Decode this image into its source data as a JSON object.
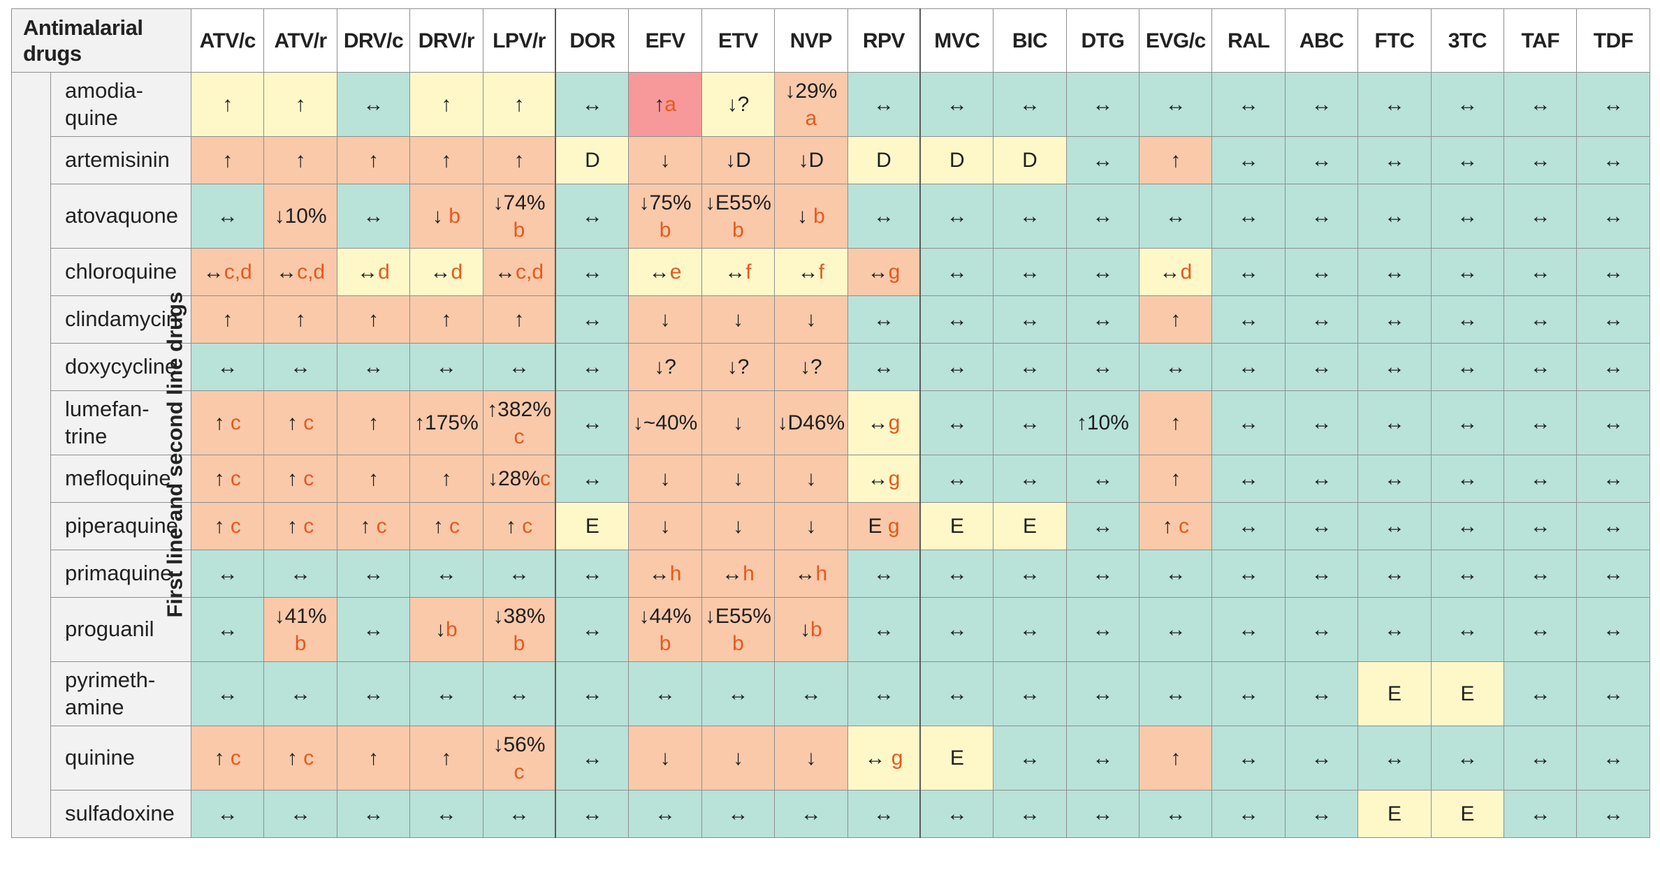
{
  "header": {
    "corner": "Antimalarial drugs",
    "row_group_label": "First line and second line drugs",
    "columns": [
      "ATV/c",
      "ATV/r",
      "DRV/c",
      "DRV/r",
      "LPV/r",
      "DOR",
      "EFV",
      "ETV",
      "NVP",
      "RPV",
      "MVC",
      "BIC",
      "DTG",
      "EVG/c",
      "RAL",
      "ABC",
      "FTC",
      "3TC",
      "TAF",
      "TDF"
    ]
  },
  "colors": {
    "no_interaction": "#b9e2d9",
    "minor": "#fef8c9",
    "potential": "#f9c9aa",
    "do_not_coadminister": "#f7999a",
    "note_text": "#e6591c"
  },
  "rows": [
    {
      "drug": "amodia-quine",
      "cells": [
        [
          "↑",
          "",
          "y"
        ],
        [
          "↑",
          "",
          "y"
        ],
        [
          "↔",
          "",
          "g"
        ],
        [
          "↑",
          "",
          "y"
        ],
        [
          "↑",
          "",
          "y"
        ],
        [
          "↔",
          "",
          "g"
        ],
        [
          "↑",
          "a",
          "r"
        ],
        [
          "↓?",
          "",
          "y"
        ],
        [
          "↓29%",
          "a",
          "o"
        ],
        [
          "↔",
          "",
          "g"
        ],
        [
          "↔",
          "",
          "g"
        ],
        [
          "↔",
          "",
          "g"
        ],
        [
          "↔",
          "",
          "g"
        ],
        [
          "↔",
          "",
          "g"
        ],
        [
          "↔",
          "",
          "g"
        ],
        [
          "↔",
          "",
          "g"
        ],
        [
          "↔",
          "",
          "g"
        ],
        [
          "↔",
          "",
          "g"
        ],
        [
          "↔",
          "",
          "g"
        ],
        [
          "↔",
          "",
          "g"
        ]
      ]
    },
    {
      "drug": "artemisinin",
      "cells": [
        [
          "↑",
          "",
          "o"
        ],
        [
          "↑",
          "",
          "o"
        ],
        [
          "↑",
          "",
          "o"
        ],
        [
          "↑",
          "",
          "o"
        ],
        [
          "↑",
          "",
          "o"
        ],
        [
          "D",
          "",
          "y"
        ],
        [
          "↓",
          "",
          "o"
        ],
        [
          "↓D",
          "",
          "o"
        ],
        [
          "↓D",
          "",
          "o"
        ],
        [
          "D",
          "",
          "y"
        ],
        [
          "D",
          "",
          "y"
        ],
        [
          "D",
          "",
          "y"
        ],
        [
          "↔",
          "",
          "g"
        ],
        [
          "↑",
          "",
          "o"
        ],
        [
          "↔",
          "",
          "g"
        ],
        [
          "↔",
          "",
          "g"
        ],
        [
          "↔",
          "",
          "g"
        ],
        [
          "↔",
          "",
          "g"
        ],
        [
          "↔",
          "",
          "g"
        ],
        [
          "↔",
          "",
          "g"
        ]
      ]
    },
    {
      "drug": "atovaquone",
      "cells": [
        [
          "↔",
          "",
          "g"
        ],
        [
          "↓10%",
          "",
          "o"
        ],
        [
          "↔",
          "",
          "g"
        ],
        [
          "↓ ",
          "b",
          "o"
        ],
        [
          "↓74%",
          "b",
          "o"
        ],
        [
          "↔",
          "",
          "g"
        ],
        [
          "↓75%",
          "b",
          "o"
        ],
        [
          "↓E55%",
          "b",
          "o"
        ],
        [
          "↓ ",
          "b",
          "o"
        ],
        [
          "↔",
          "",
          "g"
        ],
        [
          "↔",
          "",
          "g"
        ],
        [
          "↔",
          "",
          "g"
        ],
        [
          "↔",
          "",
          "g"
        ],
        [
          "↔",
          "",
          "g"
        ],
        [
          "↔",
          "",
          "g"
        ],
        [
          "↔",
          "",
          "g"
        ],
        [
          "↔",
          "",
          "g"
        ],
        [
          "↔",
          "",
          "g"
        ],
        [
          "↔",
          "",
          "g"
        ],
        [
          "↔",
          "",
          "g"
        ]
      ]
    },
    {
      "drug": "chloroquine",
      "cells": [
        [
          "↔",
          "c,d",
          "o"
        ],
        [
          "↔",
          "c,d",
          "o"
        ],
        [
          "↔",
          "d",
          "y"
        ],
        [
          "↔",
          "d",
          "y"
        ],
        [
          "↔",
          "c,d",
          "o"
        ],
        [
          "↔",
          "",
          "g"
        ],
        [
          "↔",
          "e",
          "y"
        ],
        [
          "↔",
          "f",
          "y"
        ],
        [
          "↔",
          "f",
          "y"
        ],
        [
          "↔",
          "g",
          "o"
        ],
        [
          "↔",
          "",
          "g"
        ],
        [
          "↔",
          "",
          "g"
        ],
        [
          "↔",
          "",
          "g"
        ],
        [
          "↔",
          "d",
          "y"
        ],
        [
          "↔",
          "",
          "g"
        ],
        [
          "↔",
          "",
          "g"
        ],
        [
          "↔",
          "",
          "g"
        ],
        [
          "↔",
          "",
          "g"
        ],
        [
          "↔",
          "",
          "g"
        ],
        [
          "↔",
          "",
          "g"
        ]
      ]
    },
    {
      "drug": "clindamycin",
      "cells": [
        [
          "↑",
          "",
          "o"
        ],
        [
          "↑",
          "",
          "o"
        ],
        [
          "↑",
          "",
          "o"
        ],
        [
          "↑",
          "",
          "o"
        ],
        [
          "↑",
          "",
          "o"
        ],
        [
          "↔",
          "",
          "g"
        ],
        [
          "↓",
          "",
          "o"
        ],
        [
          "↓",
          "",
          "o"
        ],
        [
          "↓",
          "",
          "o"
        ],
        [
          "↔",
          "",
          "g"
        ],
        [
          "↔",
          "",
          "g"
        ],
        [
          "↔",
          "",
          "g"
        ],
        [
          "↔",
          "",
          "g"
        ],
        [
          "↑",
          "",
          "o"
        ],
        [
          "↔",
          "",
          "g"
        ],
        [
          "↔",
          "",
          "g"
        ],
        [
          "↔",
          "",
          "g"
        ],
        [
          "↔",
          "",
          "g"
        ],
        [
          "↔",
          "",
          "g"
        ],
        [
          "↔",
          "",
          "g"
        ]
      ]
    },
    {
      "drug": "doxycycline",
      "cells": [
        [
          "↔",
          "",
          "g"
        ],
        [
          "↔",
          "",
          "g"
        ],
        [
          "↔",
          "",
          "g"
        ],
        [
          "↔",
          "",
          "g"
        ],
        [
          "↔",
          "",
          "g"
        ],
        [
          "↔",
          "",
          "g"
        ],
        [
          "↓?",
          "",
          "o"
        ],
        [
          "↓?",
          "",
          "o"
        ],
        [
          "↓?",
          "",
          "o"
        ],
        [
          "↔",
          "",
          "g"
        ],
        [
          "↔",
          "",
          "g"
        ],
        [
          "↔",
          "",
          "g"
        ],
        [
          "↔",
          "",
          "g"
        ],
        [
          "↔",
          "",
          "g"
        ],
        [
          "↔",
          "",
          "g"
        ],
        [
          "↔",
          "",
          "g"
        ],
        [
          "↔",
          "",
          "g"
        ],
        [
          "↔",
          "",
          "g"
        ],
        [
          "↔",
          "",
          "g"
        ],
        [
          "↔",
          "",
          "g"
        ]
      ]
    },
    {
      "drug": "lumefan-trine",
      "cells": [
        [
          "↑ ",
          "c",
          "o"
        ],
        [
          "↑ ",
          "c",
          "o"
        ],
        [
          "↑",
          "",
          "o"
        ],
        [
          "↑175%",
          "",
          "o"
        ],
        [
          "↑382%",
          "c",
          "o"
        ],
        [
          "↔",
          "",
          "g"
        ],
        [
          "↓~40%",
          "",
          "o"
        ],
        [
          "↓",
          "",
          "o"
        ],
        [
          "↓D46%",
          "",
          "o"
        ],
        [
          "↔",
          "g",
          "y"
        ],
        [
          "↔",
          "",
          "g"
        ],
        [
          "↔",
          "",
          "g"
        ],
        [
          "↑10%",
          "",
          "g"
        ],
        [
          "↑",
          "",
          "o"
        ],
        [
          "↔",
          "",
          "g"
        ],
        [
          "↔",
          "",
          "g"
        ],
        [
          "↔",
          "",
          "g"
        ],
        [
          "↔",
          "",
          "g"
        ],
        [
          "↔",
          "",
          "g"
        ],
        [
          "↔",
          "",
          "g"
        ]
      ]
    },
    {
      "drug": "mefloquine",
      "cells": [
        [
          "↑ ",
          "c",
          "o"
        ],
        [
          "↑ ",
          "c",
          "o"
        ],
        [
          "↑",
          "",
          "o"
        ],
        [
          "↑",
          "",
          "o"
        ],
        [
          "↓28%",
          "c",
          "o"
        ],
        [
          "↔",
          "",
          "g"
        ],
        [
          "↓",
          "",
          "o"
        ],
        [
          "↓",
          "",
          "o"
        ],
        [
          "↓",
          "",
          "o"
        ],
        [
          "↔",
          "g",
          "y"
        ],
        [
          "↔",
          "",
          "g"
        ],
        [
          "↔",
          "",
          "g"
        ],
        [
          "↔",
          "",
          "g"
        ],
        [
          "↑",
          "",
          "o"
        ],
        [
          "↔",
          "",
          "g"
        ],
        [
          "↔",
          "",
          "g"
        ],
        [
          "↔",
          "",
          "g"
        ],
        [
          "↔",
          "",
          "g"
        ],
        [
          "↔",
          "",
          "g"
        ],
        [
          "↔",
          "",
          "g"
        ]
      ]
    },
    {
      "drug": "piperaquine",
      "cells": [
        [
          "↑ ",
          "c",
          "o"
        ],
        [
          "↑ ",
          "c",
          "o"
        ],
        [
          "↑ ",
          "c",
          "o"
        ],
        [
          "↑ ",
          "c",
          "o"
        ],
        [
          "↑ ",
          "c",
          "o"
        ],
        [
          "E",
          "",
          "y"
        ],
        [
          "↓",
          "",
          "o"
        ],
        [
          "↓",
          "",
          "o"
        ],
        [
          "↓",
          "",
          "o"
        ],
        [
          "E ",
          "g",
          "o"
        ],
        [
          "E",
          "",
          "y"
        ],
        [
          "E",
          "",
          "y"
        ],
        [
          "↔",
          "",
          "g"
        ],
        [
          "↑ ",
          "c",
          "o"
        ],
        [
          "↔",
          "",
          "g"
        ],
        [
          "↔",
          "",
          "g"
        ],
        [
          "↔",
          "",
          "g"
        ],
        [
          "↔",
          "",
          "g"
        ],
        [
          "↔",
          "",
          "g"
        ],
        [
          "↔",
          "",
          "g"
        ]
      ]
    },
    {
      "drug": "primaquine",
      "cells": [
        [
          "↔",
          "",
          "g"
        ],
        [
          "↔",
          "",
          "g"
        ],
        [
          "↔",
          "",
          "g"
        ],
        [
          "↔",
          "",
          "g"
        ],
        [
          "↔",
          "",
          "g"
        ],
        [
          "↔",
          "",
          "g"
        ],
        [
          "↔",
          "h",
          "o"
        ],
        [
          "↔",
          "h",
          "o"
        ],
        [
          "↔",
          "h",
          "o"
        ],
        [
          "↔",
          "",
          "g"
        ],
        [
          "↔",
          "",
          "g"
        ],
        [
          "↔",
          "",
          "g"
        ],
        [
          "↔",
          "",
          "g"
        ],
        [
          "↔",
          "",
          "g"
        ],
        [
          "↔",
          "",
          "g"
        ],
        [
          "↔",
          "",
          "g"
        ],
        [
          "↔",
          "",
          "g"
        ],
        [
          "↔",
          "",
          "g"
        ],
        [
          "↔",
          "",
          "g"
        ],
        [
          "↔",
          "",
          "g"
        ]
      ]
    },
    {
      "drug": "proguanil",
      "cells": [
        [
          "↔",
          "",
          "g"
        ],
        [
          "↓41%",
          "b",
          "o"
        ],
        [
          "↔",
          "",
          "g"
        ],
        [
          "↓",
          "b",
          "o"
        ],
        [
          "↓38%",
          "b",
          "o"
        ],
        [
          "↔",
          "",
          "g"
        ],
        [
          "↓44%",
          "b",
          "o"
        ],
        [
          "↓E55%",
          "b",
          "o"
        ],
        [
          "↓",
          "b",
          "o"
        ],
        [
          "↔",
          "",
          "g"
        ],
        [
          "↔",
          "",
          "g"
        ],
        [
          "↔",
          "",
          "g"
        ],
        [
          "↔",
          "",
          "g"
        ],
        [
          "↔",
          "",
          "g"
        ],
        [
          "↔",
          "",
          "g"
        ],
        [
          "↔",
          "",
          "g"
        ],
        [
          "↔",
          "",
          "g"
        ],
        [
          "↔",
          "",
          "g"
        ],
        [
          "↔",
          "",
          "g"
        ],
        [
          "↔",
          "",
          "g"
        ]
      ]
    },
    {
      "drug": "pyrimeth-amine",
      "cells": [
        [
          "↔",
          "",
          "g"
        ],
        [
          "↔",
          "",
          "g"
        ],
        [
          "↔",
          "",
          "g"
        ],
        [
          "↔",
          "",
          "g"
        ],
        [
          "↔",
          "",
          "g"
        ],
        [
          "↔",
          "",
          "g"
        ],
        [
          "↔",
          "",
          "g"
        ],
        [
          "↔",
          "",
          "g"
        ],
        [
          "↔",
          "",
          "g"
        ],
        [
          "↔",
          "",
          "g"
        ],
        [
          "↔",
          "",
          "g"
        ],
        [
          "↔",
          "",
          "g"
        ],
        [
          "↔",
          "",
          "g"
        ],
        [
          "↔",
          "",
          "g"
        ],
        [
          "↔",
          "",
          "g"
        ],
        [
          "↔",
          "",
          "g"
        ],
        [
          "E",
          "",
          "y"
        ],
        [
          "E",
          "",
          "y"
        ],
        [
          "↔",
          "",
          "g"
        ],
        [
          "↔",
          "",
          "g"
        ]
      ]
    },
    {
      "drug": "quinine",
      "cells": [
        [
          "↑ ",
          "c",
          "o"
        ],
        [
          "↑ ",
          "c",
          "o"
        ],
        [
          "↑",
          "",
          "o"
        ],
        [
          "↑",
          "",
          "o"
        ],
        [
          "↓56%",
          "c",
          "o"
        ],
        [
          "↔",
          "",
          "g"
        ],
        [
          "↓",
          "",
          "o"
        ],
        [
          "↓",
          "",
          "o"
        ],
        [
          "↓",
          "",
          "o"
        ],
        [
          "↔ ",
          "g",
          "y"
        ],
        [
          "E",
          "",
          "y"
        ],
        [
          "↔",
          "",
          "g"
        ],
        [
          "↔",
          "",
          "g"
        ],
        [
          "↑",
          "",
          "o"
        ],
        [
          "↔",
          "",
          "g"
        ],
        [
          "↔",
          "",
          "g"
        ],
        [
          "↔",
          "",
          "g"
        ],
        [
          "↔",
          "",
          "g"
        ],
        [
          "↔",
          "",
          "g"
        ],
        [
          "↔",
          "",
          "g"
        ]
      ]
    },
    {
      "drug": "sulfadoxine",
      "cells": [
        [
          "↔",
          "",
          "g"
        ],
        [
          "↔",
          "",
          "g"
        ],
        [
          "↔",
          "",
          "g"
        ],
        [
          "↔",
          "",
          "g"
        ],
        [
          "↔",
          "",
          "g"
        ],
        [
          "↔",
          "",
          "g"
        ],
        [
          "↔",
          "",
          "g"
        ],
        [
          "↔",
          "",
          "g"
        ],
        [
          "↔",
          "",
          "g"
        ],
        [
          "↔",
          "",
          "g"
        ],
        [
          "↔",
          "",
          "g"
        ],
        [
          "↔",
          "",
          "g"
        ],
        [
          "↔",
          "",
          "g"
        ],
        [
          "↔",
          "",
          "g"
        ],
        [
          "↔",
          "",
          "g"
        ],
        [
          "↔",
          "",
          "g"
        ],
        [
          "E",
          "",
          "y"
        ],
        [
          "E",
          "",
          "y"
        ],
        [
          "↔",
          "",
          "g"
        ],
        [
          "↔",
          "",
          "g"
        ]
      ]
    }
  ]
}
